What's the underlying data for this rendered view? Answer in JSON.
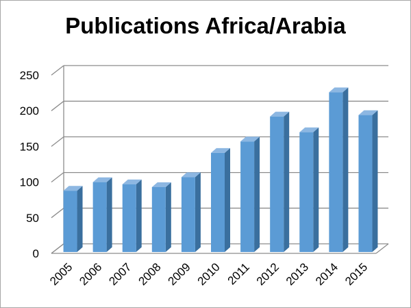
{
  "chart_data": {
    "type": "bar",
    "title": "Publications Africa/Arabia",
    "xlabel": "",
    "ylabel": "",
    "categories": [
      "2005",
      "2006",
      "2007",
      "2008",
      "2009",
      "2010",
      "2011",
      "2012",
      "2013",
      "2014",
      "2015"
    ],
    "series": [
      {
        "values": [
          86,
          98,
          95,
          91,
          105,
          139,
          155,
          190,
          168,
          224,
          192
        ]
      }
    ],
    "ylim": [
      0,
      250
    ],
    "yticks": [
      0,
      50,
      100,
      150,
      200,
      250
    ],
    "grid": true,
    "legend": "none",
    "style": "3d-column",
    "colors": {
      "bar_front": "#5b9bd5",
      "bar_side": "#3a6f9e",
      "bar_top": "#8db7e2",
      "grid": "#8c8c8c"
    }
  }
}
